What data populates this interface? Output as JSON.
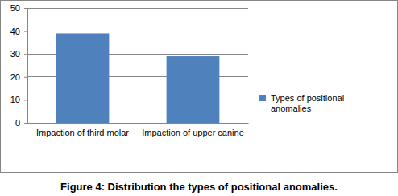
{
  "chart_data": {
    "type": "bar",
    "title": "Figure 4: Distribution the types of positional anomalies.",
    "categories": [
      "Impaction of third molar",
      "Impaction of upper canine"
    ],
    "series": [
      {
        "name": "Types of positional anomalies",
        "color": "#4f81bd",
        "values": [
          39,
          29
        ]
      }
    ],
    "ylim": [
      0,
      50
    ],
    "yticks": [
      0,
      10,
      20,
      30,
      40,
      50
    ],
    "grid": true,
    "legend": "right"
  }
}
